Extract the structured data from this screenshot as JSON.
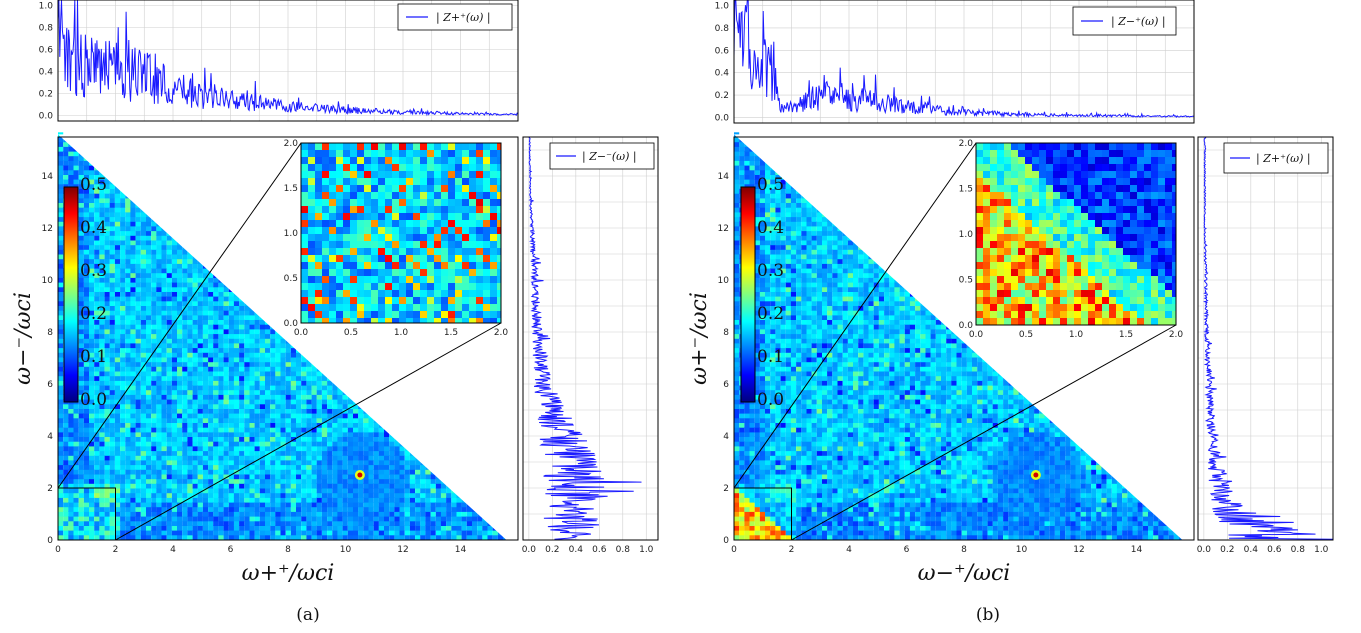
{
  "colors": {
    "line": "#1a1aff",
    "grid": "#cfcfcf",
    "frame": "#000000",
    "colormap": [
      "#00007f",
      "#0000ff",
      "#0080ff",
      "#00ffff",
      "#80ff80",
      "#ffff00",
      "#ff8000",
      "#ff0000",
      "#7f0000"
    ]
  },
  "chart_data": [
    {
      "panel": "a",
      "caption": "(a)",
      "main": {
        "type": "heatmap",
        "xlabel": "ω+⁺/ωci",
        "ylabel": "ω−⁻/ωci",
        "xlim": [
          0,
          16
        ],
        "ylim": [
          0,
          15.5
        ],
        "xticks": [
          "0",
          "2",
          "4",
          "6",
          "8",
          "10",
          "12",
          "14"
        ],
        "yticks": [
          "0",
          "2",
          "4",
          "6",
          "8",
          "10",
          "12",
          "14"
        ],
        "region": "lower-left triangle, x + y ≤ 15.6",
        "zoom_box": [
          0,
          2,
          0,
          2
        ],
        "feature": {
          "x": 10.5,
          "y": 2.5,
          "radius": 1.6
        }
      },
      "colorbar": {
        "ticks": [
          "0.0",
          "0.1",
          "0.2",
          "0.3",
          "0.4",
          "0.5"
        ],
        "range": [
          0,
          0.5
        ]
      },
      "inset": {
        "type": "heatmap",
        "xlim": [
          0,
          2
        ],
        "ylim": [
          0,
          2
        ],
        "xticks": [
          "0.0",
          "0.5",
          "1.0",
          "1.5",
          "2.0"
        ],
        "yticks": [
          "0.0",
          "0.5",
          "1.0",
          "1.5",
          "2.0"
        ],
        "pattern": "diagonal streaks with hot spots"
      },
      "top_plot": {
        "type": "line",
        "legend": "| Z+⁺(ω) |",
        "xlim": [
          0,
          16
        ],
        "ylim": [
          -0.05,
          1.05
        ],
        "yticks": [
          "0.0",
          "0.2",
          "0.4",
          "0.6",
          "0.8",
          "1.0"
        ],
        "envelope_x": [
          0,
          0.5,
          1,
          2,
          3,
          4,
          6,
          8,
          10,
          12,
          14,
          16
        ],
        "envelope_y": [
          0.75,
          0.6,
          0.55,
          0.5,
          0.45,
          0.3,
          0.18,
          0.1,
          0.06,
          0.04,
          0.02,
          0.01
        ]
      },
      "side_plot": {
        "type": "line",
        "legend": "| Z−⁻(ω) |",
        "xlim": [
          -0.05,
          1.1
        ],
        "ylim": [
          0,
          15.5
        ],
        "xticks": [
          "0.0",
          "0.2",
          "0.4",
          "0.6",
          "0.8",
          "1.0"
        ],
        "envelope_y": [
          0,
          0.5,
          1,
          2,
          3,
          4,
          5,
          6,
          8,
          10,
          12,
          14,
          15.5
        ],
        "envelope_x": [
          0.4,
          0.45,
          0.5,
          0.5,
          0.45,
          0.35,
          0.25,
          0.15,
          0.09,
          0.06,
          0.03,
          0.01,
          0.01
        ]
      }
    },
    {
      "panel": "b",
      "caption": "(b)",
      "main": {
        "type": "heatmap",
        "xlabel": "ω−⁺/ωci",
        "ylabel": "ω+⁻/ωci",
        "xlim": [
          0,
          16
        ],
        "ylim": [
          0,
          15.5
        ],
        "xticks": [
          "0",
          "2",
          "4",
          "6",
          "8",
          "10",
          "12",
          "14"
        ],
        "yticks": [
          "0",
          "2",
          "4",
          "6",
          "8",
          "10",
          "12",
          "14"
        ],
        "region": "lower-left triangle, x + y ≤ 15.6",
        "zoom_box": [
          0,
          2,
          0,
          2
        ],
        "feature": {
          "x": 10.5,
          "y": 2.5,
          "radius": 1.6
        }
      },
      "colorbar": {
        "ticks": [
          "0.0",
          "0.1",
          "0.2",
          "0.3",
          "0.4",
          "0.5"
        ],
        "range": [
          0,
          0.5
        ]
      },
      "inset": {
        "type": "heatmap",
        "xlim": [
          0,
          2
        ],
        "ylim": [
          0,
          2
        ],
        "xticks": [
          "0.0",
          "0.5",
          "1.0",
          "1.5",
          "2.0"
        ],
        "yticks": [
          "0.0",
          "0.5",
          "1.0",
          "1.5",
          "2.0"
        ],
        "pattern": "hot lower-left triangle, cold upper-right"
      },
      "top_plot": {
        "type": "line",
        "legend": "| Z−⁺(ω) |",
        "xlim": [
          0,
          16
        ],
        "ylim": [
          -0.05,
          1.05
        ],
        "yticks": [
          "0.0",
          "0.2",
          "0.4",
          "0.6",
          "0.8",
          "1.0"
        ],
        "envelope_x": [
          0,
          0.3,
          0.8,
          1.2,
          1.5,
          2,
          3,
          4,
          6,
          8,
          10,
          12,
          16
        ],
        "envelope_y": [
          0.9,
          0.9,
          0.4,
          0.7,
          0.15,
          0.1,
          0.25,
          0.22,
          0.12,
          0.06,
          0.03,
          0.02,
          0.01
        ]
      },
      "side_plot": {
        "type": "line",
        "legend": "| Z+⁺(ω) |",
        "xlim": [
          -0.05,
          1.1
        ],
        "ylim": [
          0,
          15.5
        ],
        "xticks": [
          "0.0",
          "0.2",
          "0.4",
          "0.6",
          "0.8",
          "1.0"
        ],
        "envelope_y": [
          0,
          0.3,
          0.6,
          1,
          1.5,
          2,
          3,
          4,
          6,
          8,
          10,
          12,
          15.5
        ],
        "envelope_x": [
          0.9,
          0.7,
          0.45,
          0.3,
          0.22,
          0.18,
          0.12,
          0.08,
          0.05,
          0.03,
          0.02,
          0.01,
          0.01
        ]
      }
    }
  ]
}
